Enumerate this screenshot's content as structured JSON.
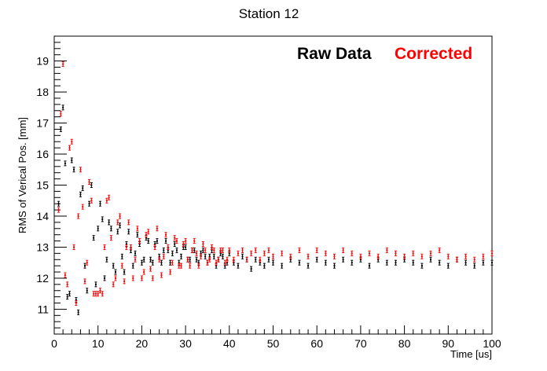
{
  "chart_data": {
    "type": "scatter",
    "title": "Station 12",
    "xlabel": "Time [us]",
    "ylabel": "RMS of Verical Pos. [mm]",
    "xlim": [
      0,
      100
    ],
    "ylim": [
      10.2,
      19.8
    ],
    "x_ticks": [
      0,
      10,
      20,
      30,
      40,
      50,
      60,
      70,
      80,
      90,
      100
    ],
    "y_ticks": [
      11,
      12,
      13,
      14,
      15,
      16,
      17,
      18,
      19
    ],
    "grid": false,
    "legend_placement": "top-right",
    "series": [
      {
        "name": "Raw Data",
        "color": "#000000",
        "points": [
          [
            1.0,
            14.4
          ],
          [
            1.5,
            16.8
          ],
          [
            2.0,
            17.5
          ],
          [
            2.5,
            15.7
          ],
          [
            3.0,
            11.4
          ],
          [
            3.5,
            11.5
          ],
          [
            4.0,
            15.8
          ],
          [
            4.5,
            15.5
          ],
          [
            5.0,
            11.3
          ],
          [
            5.5,
            10.9
          ],
          [
            6.0,
            14.7
          ],
          [
            6.5,
            14.9
          ],
          [
            7.0,
            12.4
          ],
          [
            7.5,
            11.6
          ],
          [
            8.0,
            14.4
          ],
          [
            8.5,
            15.0
          ],
          [
            9.0,
            13.3
          ],
          [
            9.5,
            11.8
          ],
          [
            10.0,
            13.6
          ],
          [
            10.5,
            14.4
          ],
          [
            11.0,
            13.9
          ],
          [
            11.5,
            12.0
          ],
          [
            12.0,
            12.6
          ],
          [
            12.5,
            13.8
          ],
          [
            13.0,
            13.6
          ],
          [
            13.5,
            12.4
          ],
          [
            14.0,
            12.2
          ],
          [
            14.5,
            13.5
          ],
          [
            15.0,
            13.7
          ],
          [
            15.5,
            12.7
          ],
          [
            16.0,
            12.2
          ],
          [
            16.5,
            13.1
          ],
          [
            17.0,
            13.5
          ],
          [
            17.5,
            12.9
          ],
          [
            18.0,
            12.4
          ],
          [
            18.5,
            12.8
          ],
          [
            19.0,
            13.4
          ],
          [
            19.5,
            13.1
          ],
          [
            20.0,
            12.5
          ],
          [
            20.5,
            12.6
          ],
          [
            21.0,
            13.3
          ],
          [
            21.5,
            13.2
          ],
          [
            22.0,
            12.6
          ],
          [
            22.5,
            12.5
          ],
          [
            23.0,
            13.1
          ],
          [
            23.5,
            13.2
          ],
          [
            24.0,
            12.7
          ],
          [
            24.5,
            12.5
          ],
          [
            25.0,
            12.9
          ],
          [
            25.5,
            13.2
          ],
          [
            26.0,
            12.9
          ],
          [
            26.5,
            12.5
          ],
          [
            27.0,
            12.8
          ],
          [
            27.5,
            13.1
          ],
          [
            28.0,
            12.9
          ],
          [
            28.5,
            12.5
          ],
          [
            29.0,
            12.7
          ],
          [
            29.5,
            13.0
          ],
          [
            30.0,
            13.0
          ],
          [
            30.5,
            12.6
          ],
          [
            31.0,
            12.6
          ],
          [
            31.5,
            12.9
          ],
          [
            32.0,
            12.9
          ],
          [
            32.5,
            12.6
          ],
          [
            33.0,
            12.5
          ],
          [
            33.5,
            12.8
          ],
          [
            34.0,
            12.9
          ],
          [
            34.5,
            12.7
          ],
          [
            35.0,
            12.5
          ],
          [
            35.5,
            12.7
          ],
          [
            36.0,
            12.9
          ],
          [
            36.5,
            12.7
          ],
          [
            37.0,
            12.4
          ],
          [
            37.5,
            12.6
          ],
          [
            38.0,
            12.8
          ],
          [
            38.5,
            12.7
          ],
          [
            39.0,
            12.4
          ],
          [
            39.5,
            12.5
          ],
          [
            40.0,
            12.8
          ],
          [
            41.0,
            12.5
          ],
          [
            42.0,
            12.4
          ],
          [
            43.0,
            12.7
          ],
          [
            44.0,
            12.6
          ],
          [
            45.0,
            12.3
          ],
          [
            46.0,
            12.6
          ],
          [
            47.0,
            12.5
          ],
          [
            48.0,
            12.4
          ],
          [
            49.0,
            12.6
          ],
          [
            50.0,
            12.5
          ],
          [
            52.0,
            12.4
          ],
          [
            54.0,
            12.6
          ],
          [
            56.0,
            12.5
          ],
          [
            58.0,
            12.4
          ],
          [
            60.0,
            12.6
          ],
          [
            62.0,
            12.5
          ],
          [
            64.0,
            12.4
          ],
          [
            66.0,
            12.6
          ],
          [
            68.0,
            12.5
          ],
          [
            70.0,
            12.6
          ],
          [
            72.0,
            12.4
          ],
          [
            74.0,
            12.6
          ],
          [
            76.0,
            12.5
          ],
          [
            78.0,
            12.5
          ],
          [
            80.0,
            12.6
          ],
          [
            82.0,
            12.5
          ],
          [
            84.0,
            12.4
          ],
          [
            86.0,
            12.6
          ],
          [
            88.0,
            12.5
          ],
          [
            90.0,
            12.4
          ],
          [
            92.0,
            12.6
          ],
          [
            94.0,
            12.5
          ],
          [
            96.0,
            12.4
          ],
          [
            98.0,
            12.5
          ],
          [
            100.0,
            12.5
          ]
        ]
      },
      {
        "name": "Corrected",
        "color": "#ff0000",
        "points": [
          [
            1.0,
            14.2
          ],
          [
            1.5,
            17.3
          ],
          [
            2.0,
            18.9
          ],
          [
            2.5,
            12.1
          ],
          [
            3.0,
            11.8
          ],
          [
            3.5,
            16.2
          ],
          [
            4.0,
            16.4
          ],
          [
            4.5,
            13.0
          ],
          [
            5.0,
            11.2
          ],
          [
            5.5,
            14.0
          ],
          [
            6.0,
            15.5
          ],
          [
            6.5,
            14.3
          ],
          [
            7.0,
            11.9
          ],
          [
            7.5,
            12.5
          ],
          [
            8.0,
            15.1
          ],
          [
            8.5,
            14.5
          ],
          [
            9.0,
            11.5
          ],
          [
            9.5,
            11.5
          ],
          [
            10.0,
            11.5
          ],
          [
            10.5,
            11.6
          ],
          [
            11.0,
            11.5
          ],
          [
            11.5,
            13.0
          ],
          [
            12.0,
            14.5
          ],
          [
            12.5,
            14.6
          ],
          [
            13.0,
            13.3
          ],
          [
            13.5,
            11.8
          ],
          [
            14.0,
            12.0
          ],
          [
            14.5,
            13.8
          ],
          [
            15.0,
            14.0
          ],
          [
            15.5,
            12.4
          ],
          [
            16.0,
            11.9
          ],
          [
            16.5,
            13.0
          ],
          [
            17.0,
            13.8
          ],
          [
            17.5,
            13.0
          ],
          [
            18.0,
            12.0
          ],
          [
            18.5,
            12.6
          ],
          [
            19.0,
            13.6
          ],
          [
            19.5,
            13.2
          ],
          [
            20.0,
            12.0
          ],
          [
            20.5,
            12.2
          ],
          [
            21.0,
            13.4
          ],
          [
            21.5,
            13.5
          ],
          [
            22.0,
            12.3
          ],
          [
            22.5,
            12.0
          ],
          [
            23.0,
            13.0
          ],
          [
            23.5,
            13.6
          ],
          [
            24.0,
            12.6
          ],
          [
            24.5,
            12.1
          ],
          [
            25.0,
            12.7
          ],
          [
            25.5,
            13.4
          ],
          [
            26.0,
            13.0
          ],
          [
            26.5,
            12.2
          ],
          [
            27.0,
            12.5
          ],
          [
            27.5,
            13.3
          ],
          [
            28.0,
            13.2
          ],
          [
            28.5,
            12.4
          ],
          [
            29.0,
            12.4
          ],
          [
            29.5,
            13.1
          ],
          [
            30.0,
            13.2
          ],
          [
            30.5,
            12.6
          ],
          [
            31.0,
            12.4
          ],
          [
            31.5,
            12.9
          ],
          [
            32.0,
            13.2
          ],
          [
            32.5,
            12.8
          ],
          [
            33.0,
            12.4
          ],
          [
            33.5,
            12.7
          ],
          [
            34.0,
            13.1
          ],
          [
            34.5,
            12.9
          ],
          [
            35.0,
            12.5
          ],
          [
            35.5,
            12.6
          ],
          [
            36.0,
            13.0
          ],
          [
            36.5,
            12.9
          ],
          [
            37.0,
            12.5
          ],
          [
            37.5,
            12.6
          ],
          [
            38.0,
            12.9
          ],
          [
            38.5,
            12.9
          ],
          [
            39.0,
            12.5
          ],
          [
            39.5,
            12.6
          ],
          [
            40.0,
            12.9
          ],
          [
            41.0,
            12.6
          ],
          [
            42.0,
            12.8
          ],
          [
            43.0,
            12.9
          ],
          [
            44.0,
            12.6
          ],
          [
            45.0,
            12.8
          ],
          [
            46.0,
            12.9
          ],
          [
            47.0,
            12.6
          ],
          [
            48.0,
            12.8
          ],
          [
            49.0,
            12.9
          ],
          [
            50.0,
            12.7
          ],
          [
            52.0,
            12.8
          ],
          [
            54.0,
            12.7
          ],
          [
            56.0,
            12.9
          ],
          [
            58.0,
            12.7
          ],
          [
            60.0,
            12.9
          ],
          [
            62.0,
            12.8
          ],
          [
            64.0,
            12.7
          ],
          [
            66.0,
            12.9
          ],
          [
            68.0,
            12.8
          ],
          [
            70.0,
            12.7
          ],
          [
            72.0,
            12.8
          ],
          [
            74.0,
            12.7
          ],
          [
            76.0,
            12.9
          ],
          [
            78.0,
            12.8
          ],
          [
            80.0,
            12.7
          ],
          [
            82.0,
            12.8
          ],
          [
            84.0,
            12.7
          ],
          [
            86.0,
            12.8
          ],
          [
            88.0,
            12.9
          ],
          [
            90.0,
            12.7
          ],
          [
            92.0,
            12.6
          ],
          [
            94.0,
            12.7
          ],
          [
            96.0,
            12.6
          ],
          [
            98.0,
            12.7
          ],
          [
            100.0,
            12.8
          ]
        ]
      }
    ]
  }
}
